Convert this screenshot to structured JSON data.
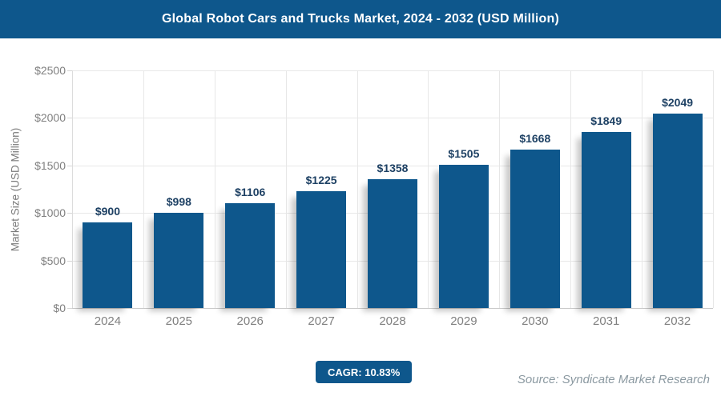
{
  "header": {
    "title": "Global Robot Cars and Trucks Market, 2024 - 2032 (USD Million)"
  },
  "chart_data": {
    "type": "bar",
    "title": "Global Robot Cars and Trucks Market, 2024 - 2032 (USD Million)",
    "categories": [
      "2024",
      "2025",
      "2026",
      "2027",
      "2028",
      "2029",
      "2030",
      "2031",
      "2032"
    ],
    "values": [
      900,
      998,
      1106,
      1225,
      1358,
      1505,
      1668,
      1849,
      2049
    ],
    "value_labels": [
      "$900",
      "$998",
      "$1106",
      "$1225",
      "$1358",
      "$1505",
      "$1668",
      "$1849",
      "$2049"
    ],
    "xlabel": "",
    "ylabel": "Market Size (USD Million)",
    "y_ticks": [
      "$2500",
      "$2000",
      "$1500",
      "$1000",
      "$500",
      "$0"
    ],
    "ylim": [
      0,
      2500
    ],
    "grid": "horizontal and vertical, light gray",
    "legend": "none",
    "bar_color": "#0e578c"
  },
  "footer": {
    "cagr_label": "CAGR: 10.83%",
    "source": "Source: Syndicate Market Research"
  },
  "colors": {
    "header_bg": "#0e578c",
    "bar": "#0e578c",
    "badge_bg": "#0e578c",
    "value_label_text": "#1e4164",
    "axis_text": "#7f7f7f",
    "grid_line": "#e7e7e7",
    "source_text": "#8b99a1"
  }
}
